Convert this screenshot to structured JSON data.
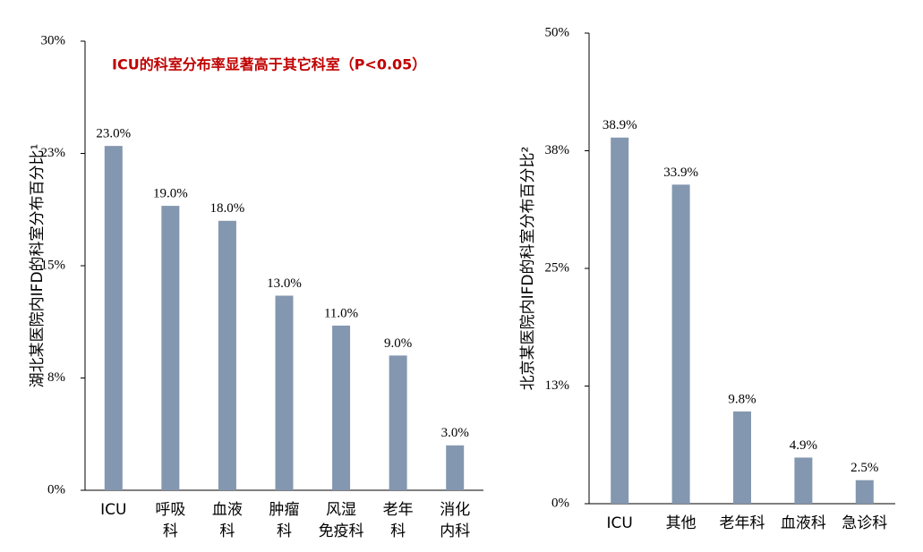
{
  "chart_data": [
    {
      "type": "bar",
      "y_label": "湖北某医院内IFD的科室分布百分比¹",
      "annotation": "ICU的科室分布率显著高于其它科室（P<0.05）",
      "categories": [
        "ICU",
        "呼吸\n科",
        "血液\n科",
        "肿瘤\n科",
        "风湿\n免疫科",
        "老年\n科",
        "消化\n内科"
      ],
      "values": [
        23,
        19,
        18,
        13,
        11,
        9,
        3
      ],
      "value_labels": [
        "23.0%",
        "19.0%",
        "18.0%",
        "13.0%",
        "11.0%",
        "9.0%",
        "3.0%"
      ],
      "color": "#8497b0",
      "ylim": [
        0,
        30
      ],
      "yticks": [
        {
          "value": 0,
          "label": "0%"
        },
        {
          "value": 7.5,
          "label": "8%"
        },
        {
          "value": 15,
          "label": "15%"
        },
        {
          "value": 22.5,
          "label": "23%"
        },
        {
          "value": 30,
          "label": "30%"
        }
      ]
    },
    {
      "type": "bar",
      "y_label": "北京某医院内IFD的科室分布百分比²",
      "categories": [
        "ICU",
        "其他",
        "老年科",
        "血液科",
        "急诊科"
      ],
      "values": [
        38.9,
        33.9,
        9.8,
        4.9,
        2.5
      ],
      "value_labels": [
        "38.9%",
        "33.9%",
        "9.8%",
        "4.9%",
        "2.5%"
      ],
      "color": "#8497b0",
      "ylim": [
        0,
        50
      ],
      "yticks": [
        {
          "value": 0,
          "label": "0%"
        },
        {
          "value": 12.5,
          "label": "13%"
        },
        {
          "value": 25,
          "label": "25%"
        },
        {
          "value": 37.5,
          "label": "38%"
        },
        {
          "value": 50,
          "label": "50%"
        }
      ]
    }
  ]
}
